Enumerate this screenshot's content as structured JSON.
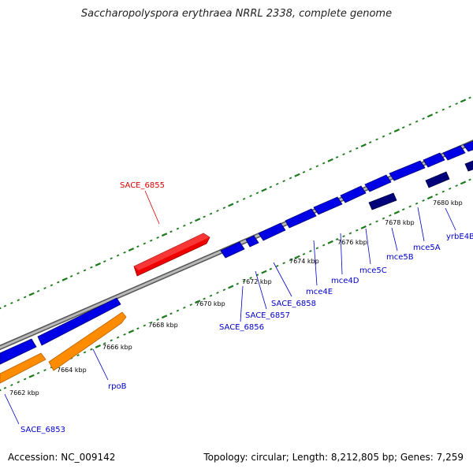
{
  "title": "Saccharopolyspora erythraea NRRL 2338, complete genome",
  "accession": "Accession: NC_009142",
  "summary": "Topology: circular; Length: 8,212,805 bp; Genes: 7,259",
  "colors": {
    "backbone": "#888888",
    "tick": "#1a7a1a",
    "forward_gene": "#0000e6",
    "forward_gene_dark": "#00007a",
    "reverse_gene": "#ff8c00",
    "highlight_gene": "#ee0000",
    "label_blue": "#0000cc",
    "label_red": "#dd0000"
  },
  "scale_labels": [
    "7662 kbp",
    "7664 kbp",
    "7666 kbp",
    "7668 kbp",
    "7670 kbp",
    "7672 kbp",
    "7674 kbp",
    "7676 kbp",
    "7678 kbp",
    "7680 kbp"
  ],
  "gene_labels": {
    "highlight": "SACE_6855",
    "sace6853": "SACE_6853",
    "rpob": "rpoB",
    "sace6856": "SACE_6856",
    "sace6857": "SACE_6857",
    "sace6858": "SACE_6858",
    "mce4e": "mce4E",
    "mce4d": "mce4D",
    "mce5c": "mce5C",
    "mce5b": "mce5B",
    "mce5a": "mce5A",
    "yrbe4b": "yrbE4B"
  }
}
